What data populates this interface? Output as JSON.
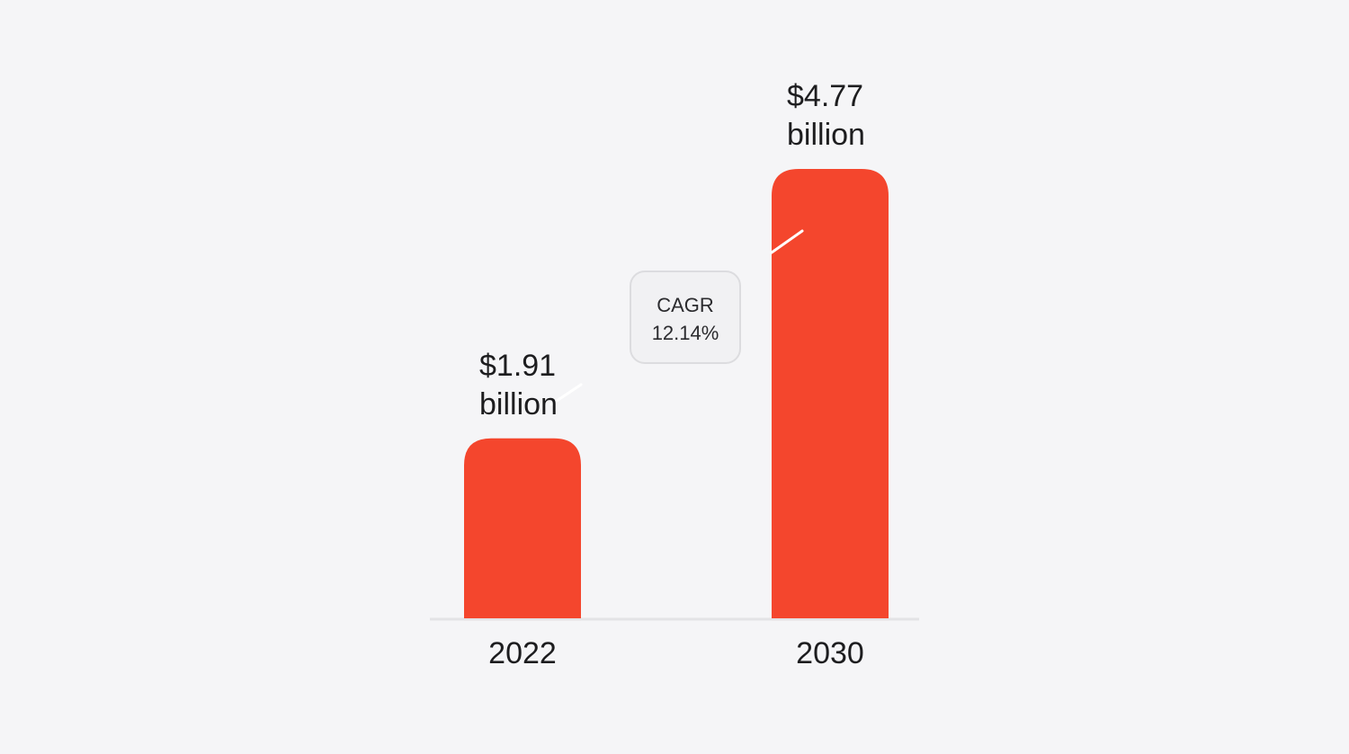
{
  "chart_data": {
    "type": "bar",
    "categories": [
      "2022",
      "2030"
    ],
    "values": [
      1.91,
      4.77
    ],
    "value_labels": [
      [
        "$1.91",
        "billion"
      ],
      [
        "$4.77",
        "billion"
      ]
    ],
    "annotation": {
      "title": "CAGR",
      "value": "12.14%"
    },
    "title": "",
    "xlabel": "",
    "ylabel": "",
    "ylim": [
      0,
      4.77
    ],
    "grid": false,
    "legend": "none"
  },
  "colors": {
    "bar": "#f4462d",
    "background": "#f5f5f7",
    "baseline": "#e3e3e6",
    "connector": "#ffffff",
    "badge_fill": "#f1f1f3",
    "badge_border": "#dcdcdf"
  }
}
